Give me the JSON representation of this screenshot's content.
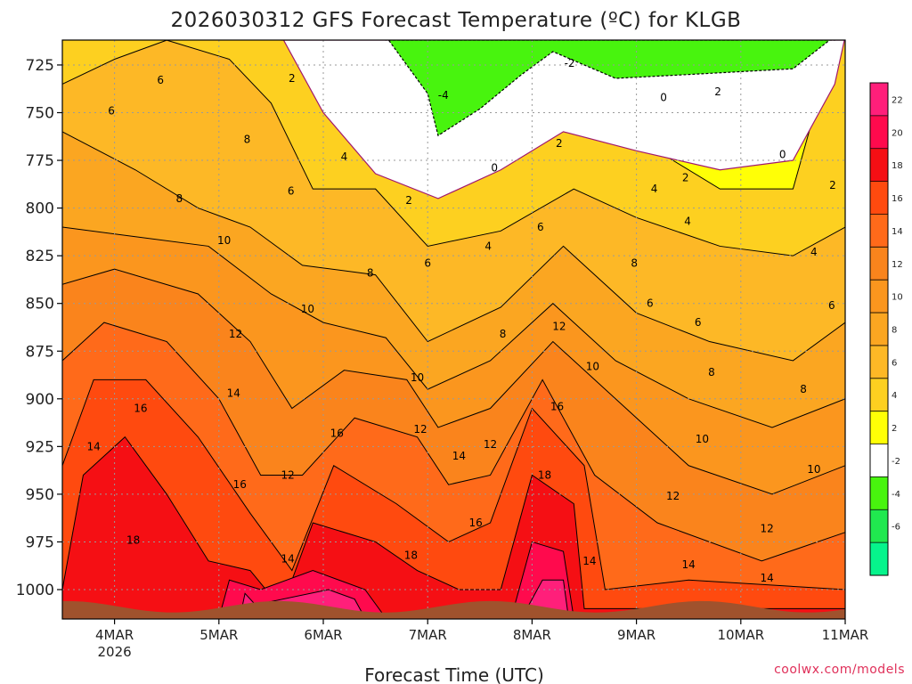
{
  "chart_data": {
    "type": "heatmap",
    "title": "2026030312 GFS Forecast Temperature (ºC) for KLGB",
    "xlabel": "Forecast Time (UTC)",
    "ylabel": "",
    "credit": "coolwx.com/models",
    "x_ticks": [
      {
        "label": "4MAR",
        "sublabel": "2026",
        "day": 4
      },
      {
        "label": "5MAR",
        "day": 5
      },
      {
        "label": "6MAR",
        "day": 6
      },
      {
        "label": "7MAR",
        "day": 7
      },
      {
        "label": "8MAR",
        "day": 8
      },
      {
        "label": "9MAR",
        "day": 9
      },
      {
        "label": "10MAR",
        "day": 10
      },
      {
        "label": "11MAR",
        "day": 11
      }
    ],
    "xlim": [
      3.5,
      11.0
    ],
    "y_ticks": [
      "725",
      "750",
      "775",
      "800",
      "825",
      "850",
      "875",
      "900",
      "925",
      "950",
      "975",
      "1000"
    ],
    "ylim_hpa": [
      1015,
      710
    ],
    "colorbar": {
      "ticks": [
        "22",
        "20",
        "18",
        "16",
        "14",
        "12",
        "10",
        "8",
        "6",
        "4",
        "2",
        "-2",
        "-4",
        "-6"
      ],
      "bands": [
        {
          "range": "22+",
          "color": "#ff1f7a"
        },
        {
          "range": "20-22",
          "color": "#ff0a4d"
        },
        {
          "range": "18-20",
          "color": "#f50f14"
        },
        {
          "range": "16-18",
          "color": "#ff4a0f"
        },
        {
          "range": "14-16",
          "color": "#ff6a1a"
        },
        {
          "range": "12-14",
          "color": "#fa841c"
        },
        {
          "range": "10-12",
          "color": "#fb961e"
        },
        {
          "range": "8-10",
          "color": "#fba621"
        },
        {
          "range": "6-8",
          "color": "#fdb826"
        },
        {
          "range": "4-6",
          "color": "#fdd020"
        },
        {
          "range": "2-4",
          "color": "#ffff06"
        },
        {
          "range": "-2-2",
          "color": "#ffffff"
        },
        {
          "range": "-4--2",
          "color": "#48f40e"
        },
        {
          "range": "-6--4",
          "color": "#20e84f"
        },
        {
          "range": "<-6",
          "color": "#06f48c"
        }
      ]
    },
    "isotherm_labels": [
      {
        "value": "6",
        "day": 4.44,
        "hpa": 733
      },
      {
        "value": "6",
        "day": 3.97,
        "hpa": 749
      },
      {
        "value": "8",
        "day": 4.62,
        "hpa": 795
      },
      {
        "value": "14",
        "day": 3.8,
        "hpa": 925
      },
      {
        "value": "16",
        "day": 4.25,
        "hpa": 905
      },
      {
        "value": "18",
        "day": 4.18,
        "hpa": 974
      },
      {
        "value": "2",
        "day": 5.7,
        "hpa": 732
      },
      {
        "value": "8",
        "day": 5.27,
        "hpa": 764
      },
      {
        "value": "10",
        "day": 5.05,
        "hpa": 817
      },
      {
        "value": "12",
        "day": 5.16,
        "hpa": 866
      },
      {
        "value": "14",
        "day": 5.14,
        "hpa": 897
      },
      {
        "value": "16",
        "day": 5.2,
        "hpa": 945
      },
      {
        "value": "6",
        "day": 5.69,
        "hpa": 791
      },
      {
        "value": "4",
        "day": 6.2,
        "hpa": 773
      },
      {
        "value": "10",
        "day": 5.85,
        "hpa": 853
      },
      {
        "value": "12",
        "day": 5.66,
        "hpa": 940
      },
      {
        "value": "14",
        "day": 5.66,
        "hpa": 984
      },
      {
        "value": "16",
        "day": 6.13,
        "hpa": 918
      },
      {
        "value": "18",
        "day": 6.84,
        "hpa": 982
      },
      {
        "value": "8",
        "day": 6.45,
        "hpa": 834
      },
      {
        "value": "2",
        "day": 6.82,
        "hpa": 796
      },
      {
        "value": "-4",
        "day": 7.15,
        "hpa": 741
      },
      {
        "value": "0",
        "day": 7.64,
        "hpa": 779
      },
      {
        "value": "6",
        "day": 7.0,
        "hpa": 829
      },
      {
        "value": "4",
        "day": 7.58,
        "hpa": 820
      },
      {
        "value": "10",
        "day": 6.9,
        "hpa": 889
      },
      {
        "value": "12",
        "day": 6.93,
        "hpa": 916
      },
      {
        "value": "14",
        "day": 7.3,
        "hpa": 930
      },
      {
        "value": "12",
        "day": 7.6,
        "hpa": 924
      },
      {
        "value": "16",
        "day": 7.46,
        "hpa": 965
      },
      {
        "value": "8",
        "day": 7.72,
        "hpa": 866
      },
      {
        "value": "6",
        "day": 8.08,
        "hpa": 810
      },
      {
        "value": "2",
        "day": 8.26,
        "hpa": 766
      },
      {
        "value": "-2",
        "day": 8.36,
        "hpa": 724
      },
      {
        "value": "12",
        "day": 8.26,
        "hpa": 862
      },
      {
        "value": "16",
        "day": 8.24,
        "hpa": 904
      },
      {
        "value": "18",
        "day": 8.12,
        "hpa": 940
      },
      {
        "value": "10",
        "day": 8.58,
        "hpa": 883
      },
      {
        "value": "14",
        "day": 8.55,
        "hpa": 985
      },
      {
        "value": "0",
        "day": 9.26,
        "hpa": 742
      },
      {
        "value": "2",
        "day": 9.78,
        "hpa": 739
      },
      {
        "value": "4",
        "day": 9.17,
        "hpa": 790
      },
      {
        "value": "8",
        "day": 8.98,
        "hpa": 829
      },
      {
        "value": "6",
        "day": 9.13,
        "hpa": 850
      },
      {
        "value": "2",
        "day": 9.47,
        "hpa": 784
      },
      {
        "value": "4",
        "day": 9.49,
        "hpa": 807
      },
      {
        "value": "6",
        "day": 9.59,
        "hpa": 860
      },
      {
        "value": "8",
        "day": 9.72,
        "hpa": 886
      },
      {
        "value": "10",
        "day": 9.63,
        "hpa": 921
      },
      {
        "value": "12",
        "day": 9.35,
        "hpa": 951
      },
      {
        "value": "14",
        "day": 9.5,
        "hpa": 987
      },
      {
        "value": "12",
        "day": 10.25,
        "hpa": 968
      },
      {
        "value": "14",
        "day": 10.25,
        "hpa": 994
      },
      {
        "value": "0",
        "day": 10.4,
        "hpa": 772
      },
      {
        "value": "2",
        "day": 10.88,
        "hpa": 788
      },
      {
        "value": "4",
        "day": 10.7,
        "hpa": 823
      },
      {
        "value": "6",
        "day": 10.87,
        "hpa": 851
      },
      {
        "value": "8",
        "day": 10.6,
        "hpa": 895
      },
      {
        "value": "10",
        "day": 10.7,
        "hpa": 937
      }
    ]
  }
}
